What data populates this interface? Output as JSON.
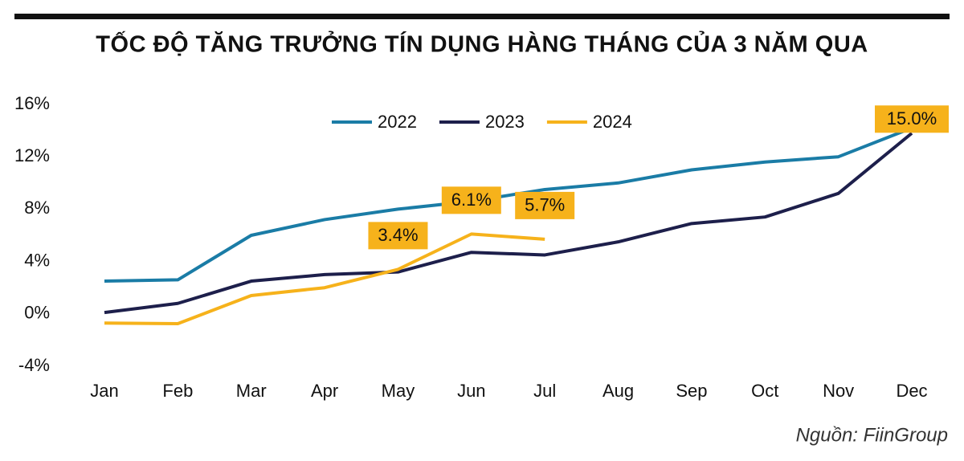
{
  "chart_data": {
    "type": "line",
    "title": "TỐC ĐỘ TĂNG TRƯỞNG TÍN DỤNG HÀNG THÁNG CỦA 3 NĂM QUA",
    "source": "Nguồn: FiinGroup",
    "categories": [
      "Jan",
      "Feb",
      "Mar",
      "Apr",
      "May",
      "Jun",
      "Jul",
      "Aug",
      "Sep",
      "Oct",
      "Nov",
      "Dec"
    ],
    "series": [
      {
        "name": "2022",
        "color": "#1a7ca6",
        "values": [
          2.5,
          2.6,
          6.0,
          7.2,
          8.0,
          8.6,
          9.5,
          10.0,
          11.0,
          11.6,
          12.0,
          14.2
        ]
      },
      {
        "name": "2023",
        "color": "#1d1f4b",
        "values": [
          0.1,
          0.8,
          2.5,
          3.0,
          3.2,
          4.7,
          4.5,
          5.5,
          6.9,
          7.4,
          9.2,
          13.8
        ]
      },
      {
        "name": "2024",
        "color": "#f6b21b",
        "values": [
          -0.7,
          -0.75,
          1.4,
          2.0,
          3.4,
          6.1,
          5.7,
          null,
          null,
          null,
          null,
          null
        ],
        "value_labels": [
          null,
          null,
          null,
          null,
          "3.4%",
          "6.1%",
          "5.7%",
          null,
          null,
          null,
          null,
          null
        ]
      }
    ],
    "annotations": [
      {
        "label": "15.0%",
        "category": "Dec",
        "value": 15.0
      }
    ],
    "ylim": [
      -4,
      16
    ],
    "yticks": [
      {
        "value": -4,
        "label": "-4%"
      },
      {
        "value": 0,
        "label": "0%"
      },
      {
        "value": 4,
        "label": "4%"
      },
      {
        "value": 8,
        "label": "8%"
      },
      {
        "value": 12,
        "label": "12%"
      },
      {
        "value": 16,
        "label": "16%"
      }
    ],
    "legend": "top",
    "label_box_color": "#f6b21b"
  }
}
